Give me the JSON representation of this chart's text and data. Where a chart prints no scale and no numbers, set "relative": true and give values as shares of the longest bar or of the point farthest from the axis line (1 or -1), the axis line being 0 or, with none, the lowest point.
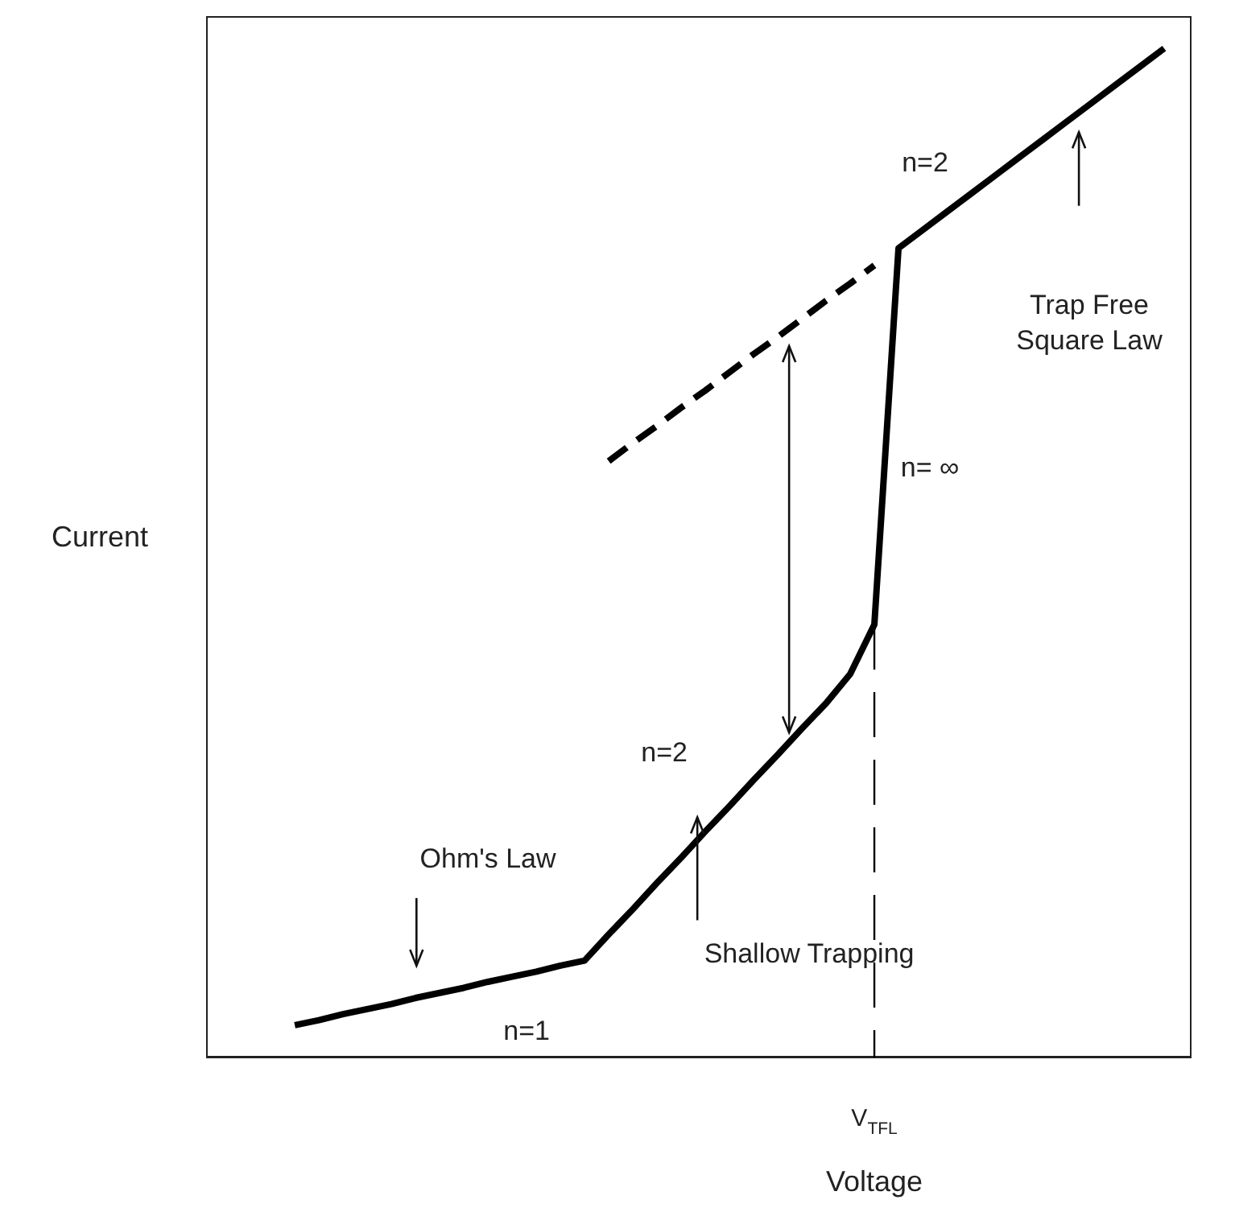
{
  "chart_data": {
    "type": "line",
    "relative": true,
    "xlabel": "Voltage",
    "ylabel": "Current",
    "marker": "none",
    "categories": [
      null,
      null,
      null,
      null,
      null,
      null,
      null,
      null,
      null,
      null,
      null,
      null,
      null,
      null,
      null,
      null,
      null,
      null,
      null,
      null,
      null,
      null,
      null,
      null,
      null,
      null,
      null,
      null,
      null,
      null,
      null,
      null,
      null,
      null,
      null,
      null,
      null
    ],
    "series": [
      {
        "color": "#000000",
        "line_style": "solid",
        "values": [
          0.032,
          0.037,
          0.043,
          0.048,
          0.053,
          0.059,
          0.064,
          0.069,
          0.075,
          0.08,
          0.085,
          0.091,
          0.096,
          0.122,
          0.147,
          0.173,
          0.198,
          0.224,
          0.249,
          0.275,
          0.3,
          0.326,
          0.351,
          0.38,
          0.429,
          0.802,
          0.82,
          0.838,
          0.856,
          0.874,
          0.892,
          0.91,
          0.928,
          0.946,
          0.964,
          0.982,
          1.0
        ]
      },
      {
        "color": "#000000",
        "line_style": "dashed",
        "values": [
          null,
          null,
          null,
          null,
          null,
          null,
          null,
          null,
          null,
          null,
          null,
          null,
          null,
          0.591,
          0.609,
          0.626,
          0.644,
          0.661,
          0.679,
          0.697,
          0.714,
          0.732,
          0.75,
          0.767,
          0.785,
          null,
          null,
          null,
          null,
          null,
          null,
          null,
          null,
          null,
          null,
          null,
          null
        ]
      }
    ],
    "annotations": [
      "V$_{TFL}$",
      "n=2",
      "Trap Free\nSquare Law",
      "n= ∞",
      "n=2",
      "Ohm's Law",
      "Shallow Trapping",
      "n=1"
    ]
  }
}
